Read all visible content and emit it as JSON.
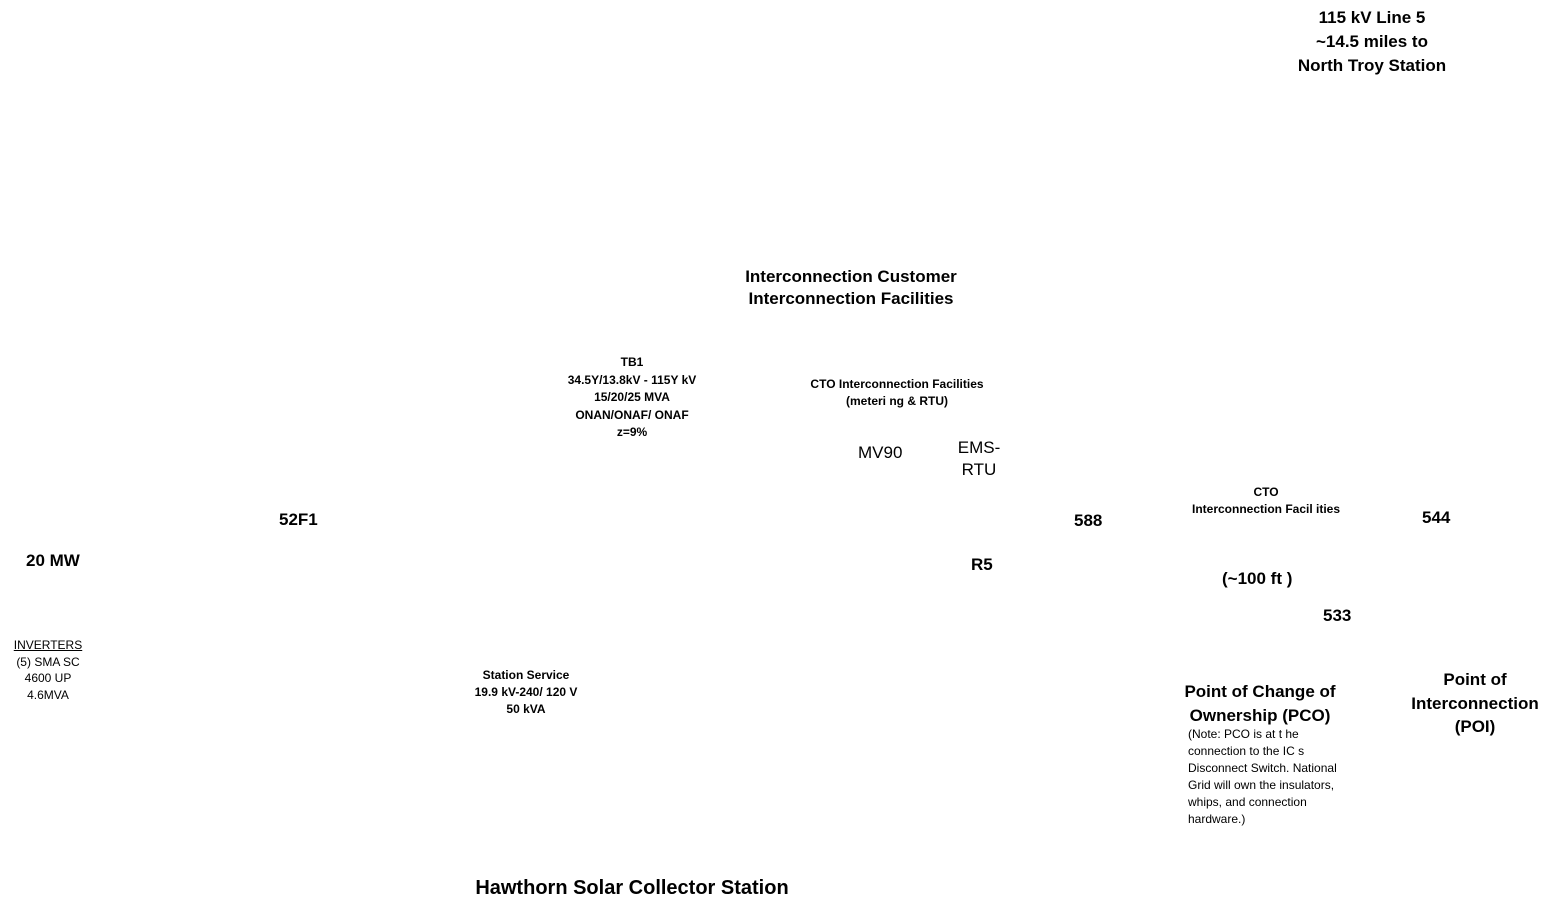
{
  "line5": [
    "115 kV Line 5",
    "~14.5 miles to",
    "North Troy Station"
  ],
  "customer_facilities": [
    "Interconnection Customer",
    "Interconnection  Facilities"
  ],
  "tb1": [
    "TB1",
    "34.5Y/13.8kV - 115Y kV",
    "15/20/25 MVA",
    "ONAN/ONAF/ ONAF",
    "z=9%"
  ],
  "cto_metering": [
    "CTO  Interconnection Facilities",
    "(meteri ng & RTU)"
  ],
  "mv90": "MV90",
  "ems_rtu": [
    "EMS-",
    "RTU"
  ],
  "labels": {
    "breaker_52f1": "52F1",
    "switch_588": "588",
    "switch_544": "544",
    "switch_533": "533",
    "relay_r5": "R5",
    "capacity": "20 MW"
  },
  "cto_facilities": [
    "CTO",
    "Interconnection  Facil ities"
  ],
  "distance": "(~100 ft )",
  "inverters": {
    "heading": "INVERTERS",
    "lines": [
      "(5) SMA SC",
      "4600 UP",
      "4.6MVA"
    ]
  },
  "station_service": [
    "Station Service",
    "19.9 kV-240/ 120 V",
    "50 kVA"
  ],
  "pco": {
    "title": [
      "Point of Change of",
      "Ownership (PCO)"
    ],
    "note": "(Note: PCO is at t he connection to the IC s Disconnect Switch. National Grid will own the insulators, whips, and connection hardware.)"
  },
  "poi": [
    "Point of",
    "Interconnection",
    "(POI)"
  ],
  "station_title": "Hawthorn Solar Collector Station"
}
